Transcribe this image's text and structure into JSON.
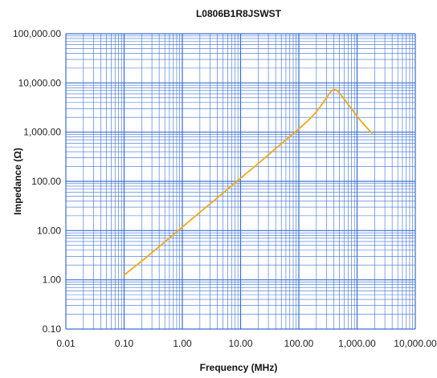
{
  "chart_data": {
    "type": "line",
    "title": "L0806B1R8JSWST",
    "xlabel": "Frequency (MHz)",
    "ylabel": "Impedance (Ω)",
    "x_scale": "log",
    "y_scale": "log",
    "xlim": [
      0.01,
      10000
    ],
    "ylim": [
      0.1,
      100000
    ],
    "x_tick_values": [
      0.01,
      0.1,
      1,
      10,
      100,
      1000,
      10000
    ],
    "x_tick_labels": [
      "0.01",
      "0.10",
      "1.00",
      "10.00",
      "100.00",
      "1,000.00",
      "10,000.00"
    ],
    "y_tick_values": [
      0.1,
      1,
      10,
      100,
      1000,
      10000,
      100000
    ],
    "y_tick_labels": [
      "0.10",
      "1.00",
      "10.00",
      "100.00",
      "1,000.00",
      "10,000.00",
      "100,000.00"
    ],
    "grid": true,
    "grid_color": "#3a6fd0",
    "line_color": "#f0a818",
    "series": [
      {
        "x": [
          0.1,
          0.2,
          0.5,
          1,
          2,
          5,
          10,
          20,
          50,
          100,
          150,
          200,
          250,
          300,
          350,
          400,
          450,
          500,
          600,
          800,
          1000,
          1300,
          1800
        ],
        "y": [
          1.25,
          2.4,
          5.9,
          11.8,
          23.5,
          58,
          116,
          230,
          580,
          1170,
          1800,
          2600,
          3700,
          5000,
          6500,
          7300,
          7000,
          6200,
          4700,
          3000,
          2100,
          1450,
          950
        ]
      }
    ]
  }
}
